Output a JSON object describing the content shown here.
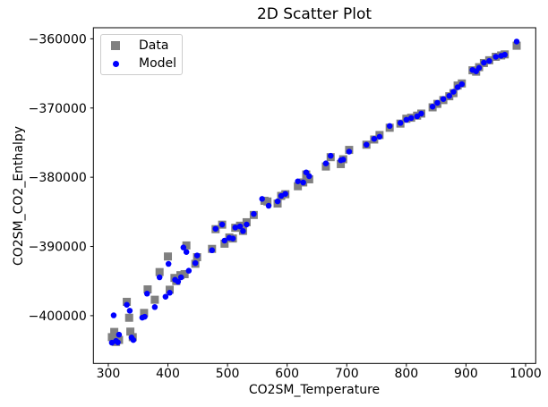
{
  "chart_data": {
    "type": "scatter",
    "title": "2D Scatter Plot",
    "xlabel": "CO2SM_Temperature",
    "ylabel": "CO2SM_CO2_Enthalpy",
    "xlim": [
      275,
      1017
    ],
    "ylim": [
      -406900,
      -358400
    ],
    "xticks": [
      300,
      400,
      500,
      600,
      700,
      800,
      900,
      1000
    ],
    "xtick_labels": [
      "300",
      "400",
      "500",
      "600",
      "700",
      "800",
      "900",
      "1000"
    ],
    "yticks": [
      -360000,
      -370000,
      -380000,
      -390000,
      -400000
    ],
    "ytick_labels": [
      "−360000",
      "−370000",
      "−380000",
      "−390000",
      "−400000"
    ],
    "grid": false,
    "legend_position": "upper left",
    "background_color": "#ffffff",
    "axes_color": "#000000",
    "series": [
      {
        "name": "Data",
        "marker": "square",
        "color": "#808080",
        "marker_size_px": 9,
        "points": [
          [
            306,
            -403100
          ],
          [
            310,
            -402350
          ],
          [
            313,
            -403800
          ],
          [
            318,
            -403500
          ],
          [
            331,
            -398000
          ],
          [
            335,
            -400300
          ],
          [
            337,
            -402300
          ],
          [
            341,
            -403100
          ],
          [
            360,
            -399600
          ],
          [
            366,
            -396200
          ],
          [
            378,
            -397700
          ],
          [
            386,
            -393700
          ],
          [
            400,
            -391450
          ],
          [
            403,
            -396250
          ],
          [
            411,
            -394550
          ],
          [
            414,
            -395000
          ],
          [
            421,
            -394150
          ],
          [
            428,
            -394000
          ],
          [
            431,
            -389850
          ],
          [
            446,
            -392500
          ],
          [
            449,
            -391550
          ],
          [
            474,
            -390350
          ],
          [
            480,
            -387500
          ],
          [
            491,
            -386850
          ],
          [
            495,
            -389600
          ],
          [
            503,
            -388700
          ],
          [
            509,
            -388850
          ],
          [
            513,
            -387300
          ],
          [
            521,
            -387000
          ],
          [
            526,
            -387750
          ],
          [
            532,
            -386500
          ],
          [
            544,
            -385450
          ],
          [
            562,
            -383400
          ],
          [
            567,
            -383500
          ],
          [
            584,
            -383800
          ],
          [
            590,
            -382700
          ],
          [
            597,
            -382450
          ],
          [
            618,
            -381300
          ],
          [
            627,
            -380750
          ],
          [
            632,
            -379600
          ],
          [
            637,
            -380300
          ],
          [
            665,
            -378450
          ],
          [
            673,
            -377100
          ],
          [
            690,
            -378100
          ],
          [
            694,
            -377400
          ],
          [
            704,
            -376050
          ],
          [
            733,
            -375300
          ],
          [
            746,
            -374550
          ],
          [
            755,
            -373900
          ],
          [
            772,
            -372850
          ],
          [
            790,
            -372250
          ],
          [
            800,
            -371550
          ],
          [
            808,
            -371400
          ],
          [
            818,
            -371100
          ],
          [
            825,
            -370800
          ],
          [
            844,
            -369900
          ],
          [
            852,
            -369400
          ],
          [
            862,
            -368850
          ],
          [
            872,
            -368300
          ],
          [
            879,
            -367850
          ],
          [
            886,
            -366750
          ],
          [
            893,
            -366450
          ],
          [
            911,
            -364550
          ],
          [
            917,
            -364750
          ],
          [
            922,
            -364100
          ],
          [
            930,
            -363500
          ],
          [
            939,
            -363100
          ],
          [
            950,
            -362600
          ],
          [
            959,
            -362400
          ],
          [
            965,
            -362250
          ],
          [
            985,
            -361000
          ]
        ]
      },
      {
        "name": "Model",
        "marker": "circle",
        "color": "#0000ff",
        "marker_size_px": 6.5,
        "points": [
          [
            306,
            -403900
          ],
          [
            309,
            -399950
          ],
          [
            313,
            -403650
          ],
          [
            316,
            -403850
          ],
          [
            318,
            -402750
          ],
          [
            331,
            -398430
          ],
          [
            336,
            -399280
          ],
          [
            339,
            -403150
          ],
          [
            342,
            -403510
          ],
          [
            357,
            -400280
          ],
          [
            361,
            -400150
          ],
          [
            365,
            -396820
          ],
          [
            378,
            -398760
          ],
          [
            386,
            -394460
          ],
          [
            396,
            -397260
          ],
          [
            401,
            -392520
          ],
          [
            403,
            -396690
          ],
          [
            412,
            -394810
          ],
          [
            417,
            -395100
          ],
          [
            422,
            -394460
          ],
          [
            426,
            -390150
          ],
          [
            431,
            -390800
          ],
          [
            435,
            -393510
          ],
          [
            446,
            -392400
          ],
          [
            449,
            -391300
          ],
          [
            474,
            -390550
          ],
          [
            480,
            -387440
          ],
          [
            491,
            -386830
          ],
          [
            495,
            -389150
          ],
          [
            503,
            -388750
          ],
          [
            509,
            -388850
          ],
          [
            513,
            -387260
          ],
          [
            521,
            -387100
          ],
          [
            526,
            -387770
          ],
          [
            532,
            -386830
          ],
          [
            544,
            -385300
          ],
          [
            558,
            -383130
          ],
          [
            569,
            -384120
          ],
          [
            584,
            -383480
          ],
          [
            590,
            -382700
          ],
          [
            597,
            -382400
          ],
          [
            618,
            -380590
          ],
          [
            627,
            -380760
          ],
          [
            632,
            -379300
          ],
          [
            637,
            -379850
          ],
          [
            665,
            -378000
          ],
          [
            673,
            -376900
          ],
          [
            690,
            -377550
          ],
          [
            694,
            -377450
          ],
          [
            704,
            -376300
          ],
          [
            733,
            -375300
          ],
          [
            746,
            -374450
          ],
          [
            755,
            -374150
          ],
          [
            772,
            -372600
          ],
          [
            790,
            -372150
          ],
          [
            800,
            -371700
          ],
          [
            808,
            -371450
          ],
          [
            818,
            -371200
          ],
          [
            825,
            -370800
          ],
          [
            844,
            -369800
          ],
          [
            852,
            -369250
          ],
          [
            862,
            -368700
          ],
          [
            872,
            -368250
          ],
          [
            879,
            -367650
          ],
          [
            886,
            -367000
          ],
          [
            893,
            -366550
          ],
          [
            911,
            -364500
          ],
          [
            917,
            -364700
          ],
          [
            922,
            -364200
          ],
          [
            930,
            -363450
          ],
          [
            939,
            -363200
          ],
          [
            950,
            -362600
          ],
          [
            959,
            -362450
          ],
          [
            965,
            -362300
          ],
          [
            985,
            -360400
          ]
        ]
      }
    ]
  }
}
